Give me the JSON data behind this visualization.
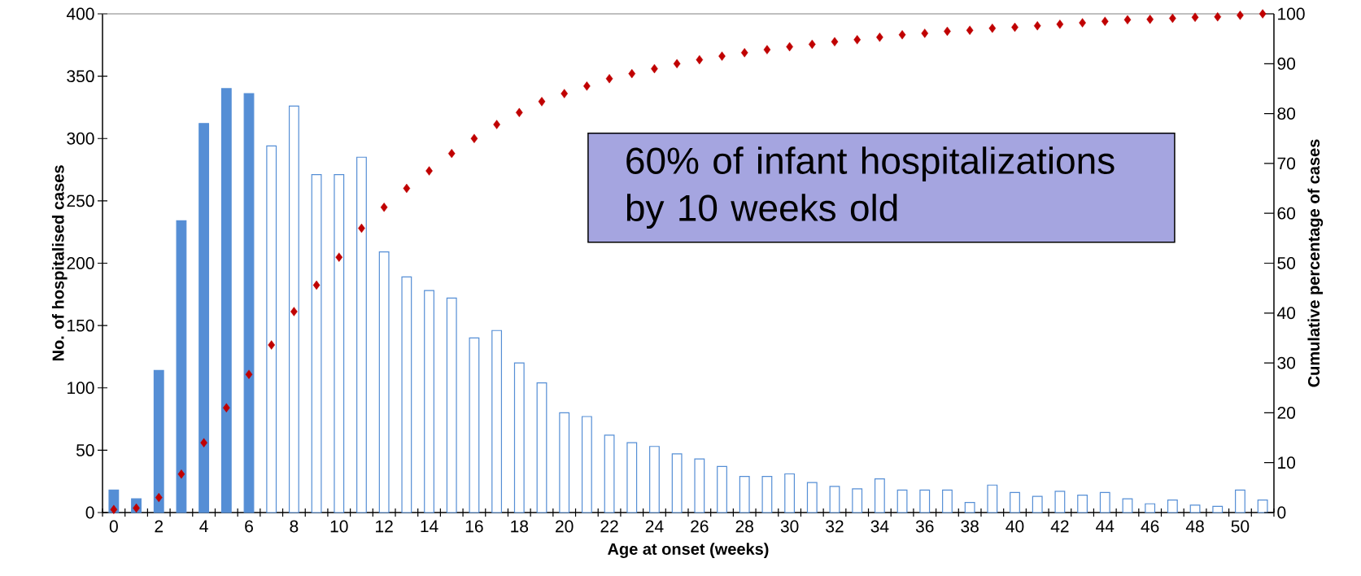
{
  "chart_data": {
    "type": "bar",
    "xlabel": "Age at onset (weeks)",
    "ylabel": "No. of hospitalised cases",
    "y2label": "Cumulative percentage of cases",
    "categories": [
      "0",
      null,
      "2",
      null,
      "4",
      null,
      "6",
      null,
      "8",
      null,
      "10",
      null,
      "12",
      null,
      "14",
      null,
      "16",
      null,
      "18",
      null,
      "20",
      null,
      "22",
      null,
      "24",
      null,
      "26",
      null,
      "28",
      null,
      "30",
      null,
      "32",
      null,
      "34",
      null,
      "36",
      null,
      "38",
      null,
      "40",
      null,
      "42",
      null,
      "44",
      null,
      "46",
      null,
      "48",
      null,
      "50",
      null
    ],
    "series": [
      {
        "color": "#558ed5",
        "values": [
          18,
          11,
          114,
          234,
          312,
          340,
          336,
          null,
          null,
          null,
          null,
          null,
          null,
          null,
          null,
          null,
          null,
          null,
          null,
          null,
          null,
          null,
          null,
          null,
          null,
          null,
          null,
          null,
          null,
          null,
          null,
          null,
          null,
          null,
          null,
          null,
          null,
          null,
          null,
          null,
          null,
          null,
          null,
          null,
          null,
          null,
          null,
          null,
          null,
          null,
          null,
          null
        ]
      },
      {
        "color": "#558ed5",
        "values": [
          null,
          null,
          null,
          null,
          null,
          null,
          null,
          294,
          326,
          271,
          271,
          285,
          209,
          189,
          178,
          172,
          140,
          146,
          120,
          104,
          80,
          77,
          62,
          56,
          53,
          47,
          43,
          37,
          29,
          29,
          31,
          24,
          21,
          19,
          27,
          18,
          18,
          18,
          8,
          22,
          16,
          13,
          17,
          14,
          16,
          11,
          7,
          10,
          6,
          5,
          18,
          10
        ]
      },
      {
        "type": "scatter",
        "axis": "y2",
        "color": "#c00000",
        "values": [
          0.6,
          0.9,
          3,
          7.7,
          14,
          21,
          27.7,
          33.6,
          40.3,
          45.6,
          51.2,
          57,
          61.2,
          65,
          68.5,
          72,
          75,
          77.8,
          80.2,
          82.4,
          84,
          85.5,
          87,
          88,
          89,
          90,
          90.8,
          91.5,
          92.2,
          92.8,
          93.4,
          93.9,
          94.4,
          94.8,
          95.3,
          95.8,
          96.1,
          96.5,
          96.7,
          97.1,
          97.3,
          97.6,
          97.9,
          98.2,
          98.5,
          98.8,
          98.9,
          99.1,
          99.3,
          99.4,
          99.7,
          100
        ]
      }
    ],
    "marker": "diamond",
    "ylim": [
      0,
      400
    ],
    "yticks": [
      0,
      50,
      100,
      150,
      200,
      250,
      300,
      350,
      400
    ],
    "y2lim": [
      0,
      100
    ],
    "y2ticks": [
      0,
      10,
      20,
      30,
      40,
      50,
      60,
      70,
      80,
      90,
      100
    ],
    "annotations": [
      "60% of infant hospitalizations by 10 weeks old"
    ]
  }
}
